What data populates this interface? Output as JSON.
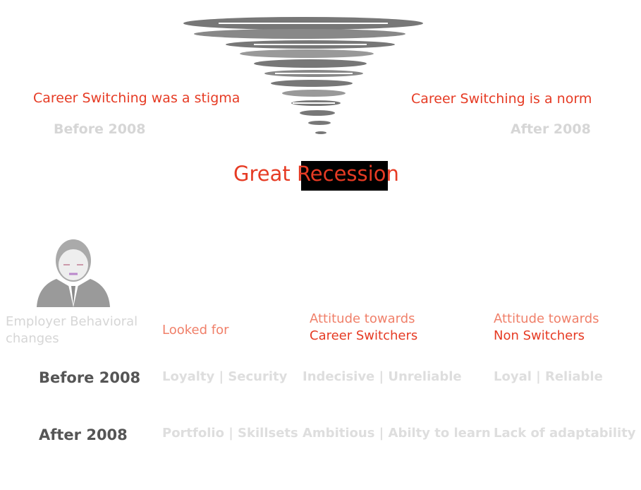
{
  "top": {
    "left_label": "Career Switching was a stigma",
    "left_year": "Before 2008",
    "right_label": "Career Switching is a norm",
    "right_year": "After 2008",
    "title": "Great Recession"
  },
  "table": {
    "header": [
      [
        "Employer Behavioral",
        "changes"
      ],
      [
        "Looked for"
      ],
      [
        "Attitude towards",
        "Career Switchers"
      ],
      [
        "Attitude towards",
        "Non Switchers"
      ]
    ],
    "rows": [
      [
        "Before 2008",
        "Loyalty | Security",
        "Indecisive | Unreliable",
        "Loyal | Reliable"
      ],
      [
        "After 2008",
        "Portfolio | Skillsets",
        "Ambitious | Abilty to learn",
        "Lack of adaptability"
      ]
    ]
  }
}
